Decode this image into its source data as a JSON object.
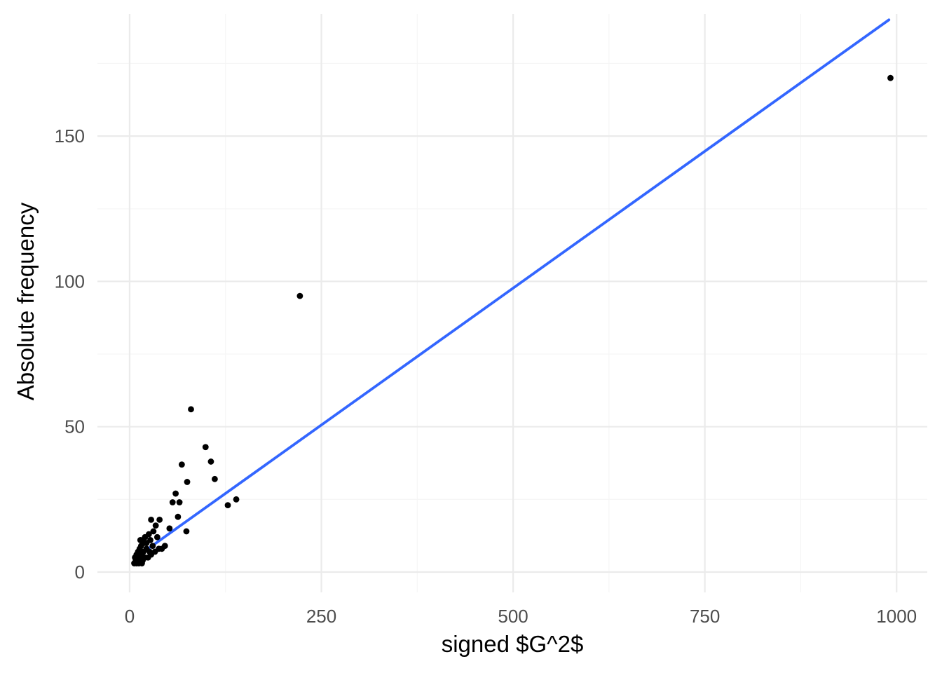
{
  "chart_data": {
    "type": "scatter",
    "xlabel": "signed $G^2$",
    "ylabel": "Absolute frequency",
    "xlim": [
      -42,
      1040
    ],
    "ylim": [
      -7,
      192
    ],
    "x_ticks": [
      0,
      250,
      500,
      750,
      1000
    ],
    "y_ticks": [
      0,
      50,
      100,
      150
    ],
    "x_minor": [
      125,
      375,
      625,
      875
    ],
    "y_minor": [
      25,
      75,
      125,
      175
    ],
    "grid": true,
    "legend": "none",
    "colors": {
      "points": "#000000",
      "fit_line": "#3366ff",
      "grid": "#ebebeb"
    },
    "points": [
      {
        "x": 992,
        "y": 170
      },
      {
        "x": 222,
        "y": 95
      },
      {
        "x": 80,
        "y": 56
      },
      {
        "x": 99,
        "y": 43
      },
      {
        "x": 106,
        "y": 38
      },
      {
        "x": 68,
        "y": 37
      },
      {
        "x": 111,
        "y": 32
      },
      {
        "x": 75,
        "y": 31
      },
      {
        "x": 60,
        "y": 27
      },
      {
        "x": 56,
        "y": 24
      },
      {
        "x": 65,
        "y": 24
      },
      {
        "x": 139,
        "y": 25
      },
      {
        "x": 128,
        "y": 23
      },
      {
        "x": 63,
        "y": 19
      },
      {
        "x": 52,
        "y": 15
      },
      {
        "x": 74,
        "y": 14
      },
      {
        "x": 39,
        "y": 18
      },
      {
        "x": 28,
        "y": 18
      },
      {
        "x": 34,
        "y": 16
      },
      {
        "x": 31,
        "y": 14
      },
      {
        "x": 25,
        "y": 13
      },
      {
        "x": 20,
        "y": 12
      },
      {
        "x": 27,
        "y": 11
      },
      {
        "x": 17,
        "y": 11
      },
      {
        "x": 22,
        "y": 10
      },
      {
        "x": 15,
        "y": 9
      },
      {
        "x": 46,
        "y": 9
      },
      {
        "x": 42,
        "y": 8
      },
      {
        "x": 38,
        "y": 8
      },
      {
        "x": 33,
        "y": 7
      },
      {
        "x": 13,
        "y": 8
      },
      {
        "x": 18,
        "y": 7
      },
      {
        "x": 28,
        "y": 6
      },
      {
        "x": 11,
        "y": 7
      },
      {
        "x": 24,
        "y": 5
      },
      {
        "x": 20,
        "y": 5
      },
      {
        "x": 15,
        "y": 6
      },
      {
        "x": 9,
        "y": 6
      },
      {
        "x": 12,
        "y": 5
      },
      {
        "x": 17,
        "y": 4
      },
      {
        "x": 14,
        "y": 4
      },
      {
        "x": 8,
        "y": 4
      },
      {
        "x": 11,
        "y": 4
      },
      {
        "x": 6,
        "y": 3
      },
      {
        "x": 9,
        "y": 3
      },
      {
        "x": 12,
        "y": 3
      },
      {
        "x": 16,
        "y": 3
      },
      {
        "x": 7,
        "y": 5
      },
      {
        "x": 22,
        "y": 8
      },
      {
        "x": 30,
        "y": 9
      },
      {
        "x": 19,
        "y": 10
      },
      {
        "x": 36,
        "y": 12
      },
      {
        "x": 26,
        "y": 7
      },
      {
        "x": 14,
        "y": 11
      }
    ],
    "fit_line": {
      "x": [
        8,
        990
      ],
      "y": [
        5,
        190
      ]
    }
  }
}
